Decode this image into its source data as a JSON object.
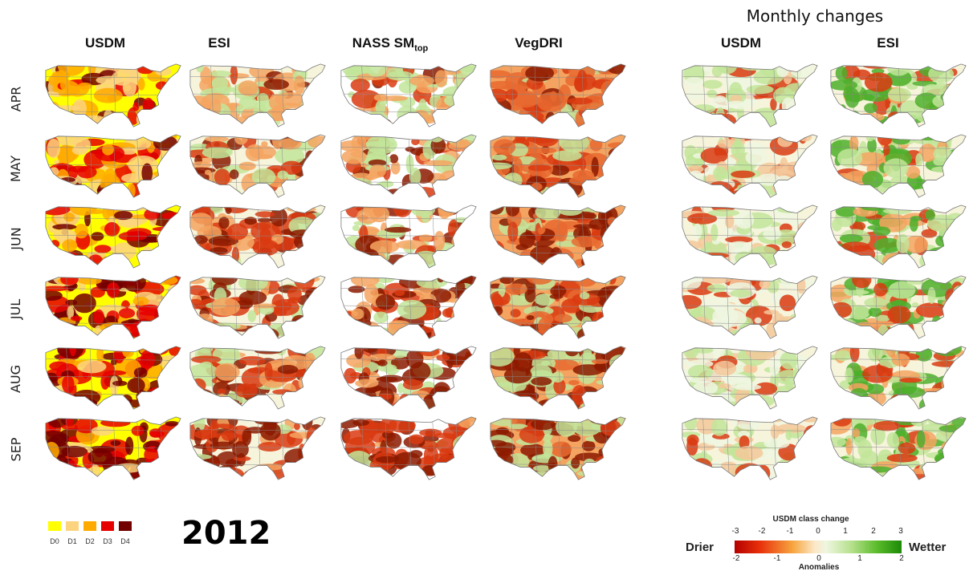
{
  "group_title": "Monthly changes",
  "columns": [
    {
      "label": "USDM",
      "sub": ""
    },
    {
      "label": "ESI",
      "sub": ""
    },
    {
      "label": "NASS SM",
      "sub": "top"
    },
    {
      "label": "VegDRI",
      "sub": ""
    },
    {
      "label": "USDM",
      "sub": ""
    },
    {
      "label": "ESI",
      "sub": ""
    }
  ],
  "rows": [
    "APR",
    "MAY",
    "JUN",
    "JUL",
    "AUG",
    "SEP"
  ],
  "year": "2012",
  "usdm_legend": {
    "labels": [
      "D0",
      "D1",
      "D2",
      "D3",
      "D4"
    ],
    "colors": [
      "#ffff00",
      "#fcd37f",
      "#ffaa00",
      "#e60000",
      "#730000"
    ]
  },
  "change_legend": {
    "title": "USDM class change",
    "top_ticks": [
      "-3",
      "-2",
      "-1",
      "0",
      "1",
      "2",
      "3"
    ],
    "bottom_ticks": [
      "-2",
      "-1",
      "0",
      "1",
      "2"
    ],
    "bottom_label": "Anomalies",
    "left_label": "Drier",
    "right_label": "Wetter"
  },
  "colors": {
    "dry_dark": "#8b1a00",
    "dry": "#d93a10",
    "dry_light": "#f4a460",
    "neutral": "#f7f4dc",
    "wet_light": "#c2e59a",
    "wet": "#4caf2a"
  }
}
